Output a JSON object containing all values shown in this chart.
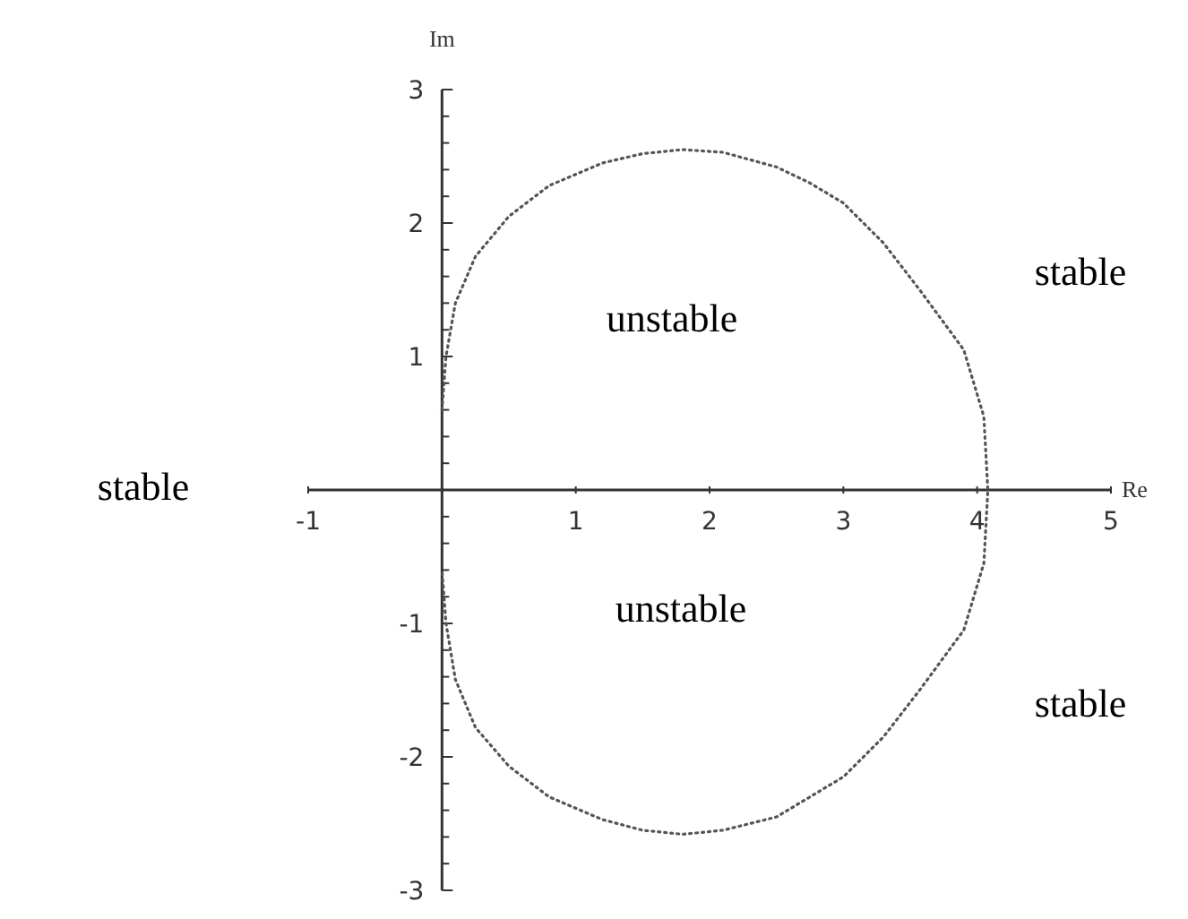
{
  "chart_data": {
    "type": "line",
    "xlabel": "Re",
    "ylabel": "Im",
    "xlim": [
      -1,
      5
    ],
    "ylim": [
      -3,
      3
    ],
    "xticks": [
      -1,
      {
        "value": 0,
        "label": null
      },
      1,
      2,
      3,
      4,
      5
    ],
    "yticks": [
      -3,
      {
        "value": -2.8,
        "label": null
      },
      {
        "value": -2.6,
        "label": null
      },
      {
        "value": -2.4,
        "label": null
      },
      {
        "value": -2.2,
        "label": null
      },
      -2,
      {
        "value": -1.8,
        "label": null
      },
      {
        "value": -1.6,
        "label": null
      },
      {
        "value": -1.4,
        "label": null
      },
      {
        "value": -1.2,
        "label": null
      },
      -1,
      {
        "value": -0.8,
        "label": null
      },
      {
        "value": -0.6,
        "label": null
      },
      {
        "value": -0.4,
        "label": null
      },
      {
        "value": -0.2,
        "label": null
      },
      {
        "value": 0,
        "label": null
      },
      {
        "value": 0.2,
        "label": null
      },
      {
        "value": 0.4,
        "label": null
      },
      {
        "value": 0.6,
        "label": null
      },
      {
        "value": 0.8,
        "label": null
      },
      1,
      {
        "value": 1.2,
        "label": null
      },
      {
        "value": 1.4,
        "label": null
      },
      {
        "value": 1.6,
        "label": null
      },
      {
        "value": 1.8,
        "label": null
      },
      2,
      {
        "value": 2.2,
        "label": null
      },
      {
        "value": 2.4,
        "label": null
      },
      {
        "value": 2.6,
        "label": null
      },
      {
        "value": 2.8,
        "label": null
      },
      3
    ],
    "line_style": "dotted",
    "series": [
      {
        "color": "#555555",
        "x": [
          0,
          0.03,
          0.1,
          0.25,
          0.5,
          0.8,
          1.2,
          1.5,
          1.8,
          2.1,
          2.5,
          2.75,
          3,
          3.3,
          3.57,
          3.9,
          4.05,
          4.08,
          4.05,
          3.9,
          3.57,
          3.3,
          3,
          2.75,
          2.5,
          2.1,
          1.8,
          1.5,
          1.2,
          0.8,
          0.5,
          0.25,
          0.1,
          0.03,
          0
        ],
        "values": [
          0.6,
          1,
          1.4,
          1.75,
          2.05,
          2.28,
          2.45,
          2.52,
          2.55,
          2.53,
          2.42,
          2.3,
          2.15,
          1.85,
          1.5,
          1.05,
          0.55,
          0,
          -0.55,
          -1.05,
          -1.5,
          -1.85,
          -2.15,
          -2.3,
          -2.45,
          -2.55,
          -2.58,
          -2.55,
          -2.47,
          -2.3,
          -2.07,
          -1.78,
          -1.42,
          -1,
          -0.6
        ]
      }
    ],
    "annotations": [
      "stable",
      "unstable",
      "stable",
      "unstable",
      "stable"
    ]
  }
}
